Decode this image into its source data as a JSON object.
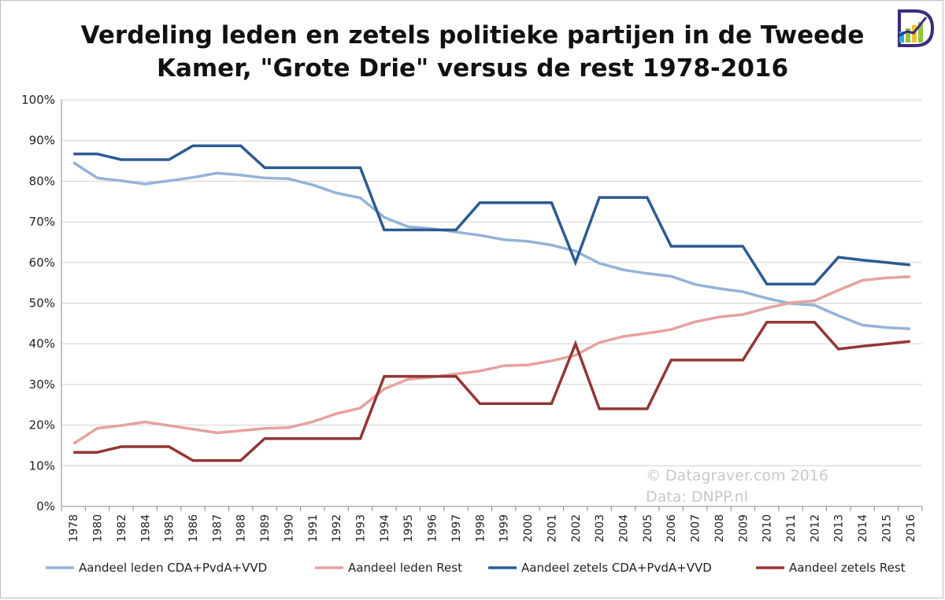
{
  "chart_data": {
    "type": "line",
    "title": "Verdeling leden en zetels politieke partijen in de Tweede Kamer, \"Grote Drie\" versus de rest 1978-2016",
    "title_lines": [
      "Verdeling leden en zetels politieke partijen in de Tweede",
      "Kamer, \"Grote Drie\" versus de rest 1978-2016"
    ],
    "xlabel": "",
    "ylabel": "",
    "ylim": [
      0,
      100
    ],
    "y_ticks": [
      "0%",
      "10%",
      "20%",
      "30%",
      "40%",
      "50%",
      "60%",
      "70%",
      "80%",
      "90%",
      "100%"
    ],
    "categories": [
      "1978",
      "1980",
      "1982",
      "1984",
      "1985",
      "1986",
      "1987",
      "1988",
      "1989",
      "1990",
      "1991",
      "1992",
      "1993",
      "1994",
      "1995",
      "1996",
      "1997",
      "1998",
      "1999",
      "2000",
      "2001",
      "2002",
      "2003",
      "2004",
      "2005",
      "2006",
      "2007",
      "2008",
      "2009",
      "2010",
      "2011",
      "2012",
      "2013",
      "2014",
      "2015",
      "2016"
    ],
    "series": [
      {
        "name": "Aandeel leden CDA+PvdA+VVD",
        "color": "#95b3d7",
        "values": [
          84.6,
          80.8,
          80.1,
          79.3,
          80.1,
          80.9,
          82.0,
          81.5,
          80.8,
          80.6,
          79.1,
          77.1,
          75.9,
          71.1,
          68.8,
          68.3,
          67.5,
          66.7,
          65.6,
          65.2,
          64.3,
          62.8,
          59.8,
          58.2,
          57.3,
          56.6,
          54.6,
          53.6,
          52.8,
          51.2,
          49.9,
          49.5,
          46.9,
          44.6,
          44.0,
          43.7
        ]
      },
      {
        "name": "Aandeel leden Rest",
        "color": "#e6a19e",
        "values": [
          15.4,
          19.2,
          19.9,
          20.8,
          19.9,
          19.0,
          18.1,
          18.6,
          19.2,
          19.4,
          20.8,
          22.8,
          24.2,
          28.9,
          31.3,
          31.8,
          32.6,
          33.3,
          34.6,
          34.8,
          35.8,
          37.2,
          40.3,
          41.8,
          42.6,
          43.5,
          45.4,
          46.6,
          47.2,
          48.8,
          50.1,
          50.6,
          53.2,
          55.6,
          56.2,
          56.5
        ]
      },
      {
        "name": "Aandeel zetels CDA+PvdA+VVD",
        "color": "#2d5b91",
        "values": [
          86.7,
          86.7,
          85.3,
          85.3,
          85.3,
          88.7,
          88.7,
          88.7,
          83.3,
          83.3,
          83.3,
          83.3,
          83.3,
          68.0,
          68.0,
          68.0,
          68.0,
          74.7,
          74.7,
          74.7,
          74.7,
          60.0,
          76.0,
          76.0,
          76.0,
          64.0,
          64.0,
          64.0,
          64.0,
          54.7,
          54.7,
          54.7,
          61.3,
          60.6,
          60.0,
          59.4
        ]
      },
      {
        "name": "Aandeel zetels Rest",
        "color": "#943634",
        "values": [
          13.3,
          13.3,
          14.7,
          14.7,
          14.7,
          11.3,
          11.3,
          11.3,
          16.7,
          16.7,
          16.7,
          16.7,
          16.7,
          32.0,
          32.0,
          32.0,
          32.0,
          25.3,
          25.3,
          25.3,
          25.3,
          40.0,
          24.0,
          24.0,
          24.0,
          36.0,
          36.0,
          36.0,
          36.0,
          45.3,
          45.3,
          45.3,
          38.7,
          39.4,
          40.0,
          40.6
        ]
      }
    ],
    "grid": true,
    "legend_position": "bottom",
    "annotations": [
      "© Datagraver.com 2016",
      "Data: DNPP.nl"
    ]
  },
  "logo": {
    "name": "datagraver-logo-icon",
    "colors": [
      "#3b2a7d",
      "#f2c230",
      "#8cc63f",
      "#29a9e0"
    ]
  }
}
